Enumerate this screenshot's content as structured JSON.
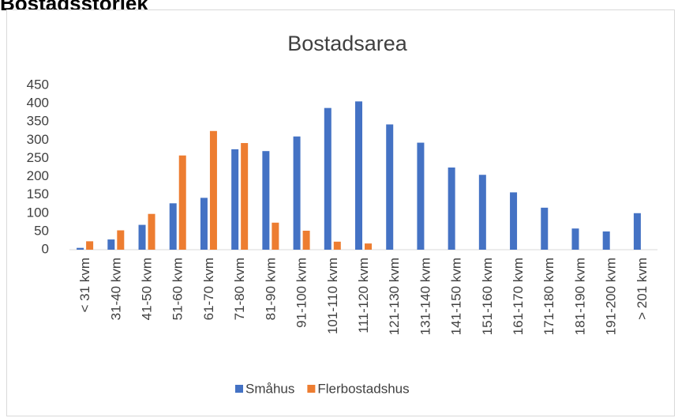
{
  "heading": "Bostadsstorlek",
  "chart_data": {
    "type": "bar",
    "title": "Bostadsarea",
    "categories": [
      "< 31 kvm",
      "31-40 kvm",
      "41-50 kvm",
      "51-60 kvm",
      "61-70 kvm",
      "71-80 kvm",
      "81-90 kvm",
      "91-100 kvm",
      "101-110 kvm",
      "111-120 kvm",
      "121-130 kvm",
      "131-140 kvm",
      "141-150 kvm",
      "151-160 kvm",
      "161-170 kvm",
      "171-180 kvm",
      "181-190 kvm",
      "191-200 kvm",
      "> 201 kvm"
    ],
    "series": [
      {
        "name": "Småhus",
        "color": "#4472c4",
        "values": [
          5,
          28,
          68,
          127,
          142,
          275,
          270,
          310,
          388,
          406,
          343,
          293,
          225,
          205,
          157,
          115,
          58,
          50,
          100
        ]
      },
      {
        "name": "Flerbostadshus",
        "color": "#ed7d31",
        "values": [
          23,
          53,
          98,
          258,
          325,
          292,
          74,
          52,
          22,
          17,
          0,
          0,
          0,
          0,
          0,
          0,
          0,
          0,
          0
        ]
      }
    ],
    "ylim": [
      0,
      450
    ],
    "yticks": [
      0,
      50,
      100,
      150,
      200,
      250,
      300,
      350,
      400,
      450
    ],
    "grid": false,
    "legend": "bottom"
  }
}
